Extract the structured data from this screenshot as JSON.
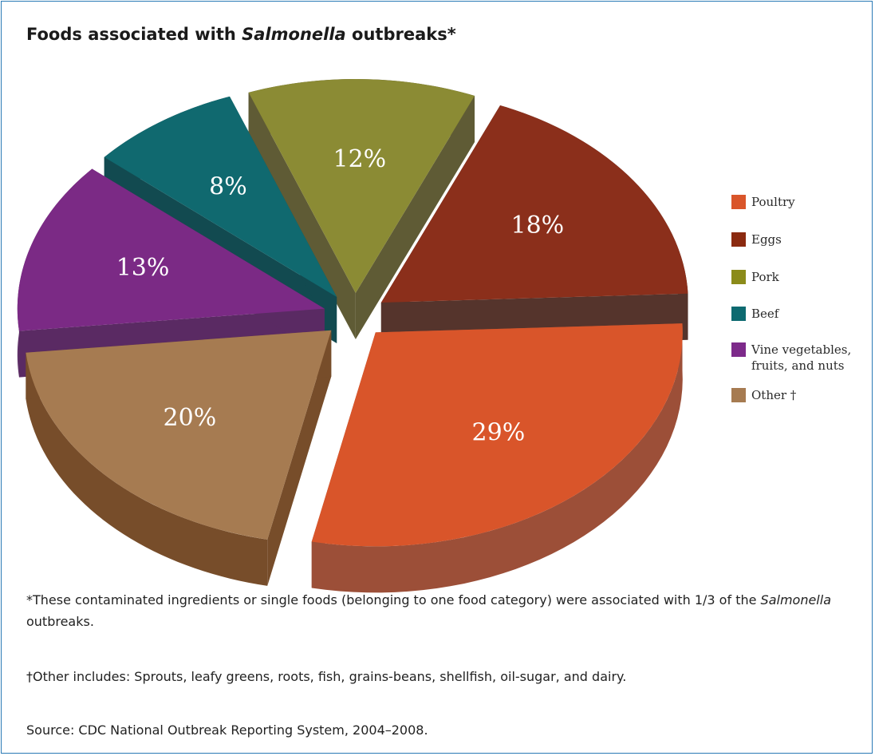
{
  "title": {
    "prefix": "Foods associated with ",
    "italic": "Salmonella",
    "suffix": " outbreaks*"
  },
  "chart_data": {
    "type": "pie",
    "style": "3d-exploded",
    "title": "Foods associated with Salmonella outbreaks*",
    "legend_position": "right",
    "slices": [
      {
        "name": "Poultry",
        "value": 29,
        "label": "29%",
        "color": "#d9552a",
        "side_color": "#9c4f38"
      },
      {
        "name": "Eggs",
        "value": 18,
        "label": "18%",
        "color": "#8b2f1b",
        "side_color": "#55342c"
      },
      {
        "name": "Pork",
        "value": 12,
        "label": "12%",
        "color": "#8b8b34",
        "side_color": "#5f5b35"
      },
      {
        "name": "Beef",
        "value": 8,
        "label": "8%",
        "color": "#10696f",
        "side_color": "#124a50"
      },
      {
        "name": "Vine vegetables, fruits, and nuts",
        "value": 13,
        "label": "13%",
        "color": "#7b2a85",
        "side_color": "#5a2a63"
      },
      {
        "name": "Other †",
        "value": 20,
        "label": "20%",
        "color": "#a67b51",
        "side_color": "#774d2a"
      }
    ]
  },
  "legend": {
    "items": [
      {
        "label": "Poultry",
        "color": "#d9552a"
      },
      {
        "label": "Eggs",
        "color": "#8b2a10"
      },
      {
        "label": "Pork",
        "color": "#8b8b1a"
      },
      {
        "label": "Beef",
        "color": "#0d6a70"
      },
      {
        "label": "Vine vegetables, fruits, and nuts",
        "color": "#7d2a8a"
      },
      {
        "label": "Other †",
        "color": "#a67b51"
      }
    ]
  },
  "notes": {
    "note1_prefix": "*These contaminated ingredients or single foods (belonging to one food category) were associated with 1/3 of the ",
    "note1_italic": "Salmonella",
    "note1_suffix": " outbreaks.",
    "note2": "†Other includes: Sprouts, leafy greens, roots, fish, grains-beans, shellfish, oil-sugar, and dairy.",
    "source": "Source: CDC National Outbreak Reporting System, 2004–2008."
  }
}
